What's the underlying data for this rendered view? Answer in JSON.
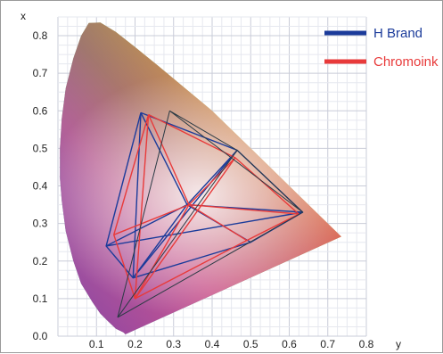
{
  "chart_data": {
    "type": "line",
    "title": "",
    "xlabel": "y",
    "ylabel": "x",
    "xlim": [
      0,
      0.8
    ],
    "ylim": [
      0,
      0.85
    ],
    "x_ticks": [
      "0.1",
      "0.2",
      "0.3",
      "0.4",
      "0.5",
      "0.6",
      "0.7",
      "0.8"
    ],
    "y_ticks": [
      "0.0",
      "0.1",
      "0.2",
      "0.3",
      "0.4",
      "0.5",
      "0.6",
      "0.7",
      "0.8"
    ],
    "grid": true,
    "legend_position": "top-right",
    "spectral_locus": [
      [
        0.175,
        0.005
      ],
      [
        0.17,
        0.01
      ],
      [
        0.15,
        0.02
      ],
      [
        0.13,
        0.04
      ],
      [
        0.11,
        0.06
      ],
      [
        0.09,
        0.09
      ],
      [
        0.06,
        0.14
      ],
      [
        0.04,
        0.2
      ],
      [
        0.02,
        0.28
      ],
      [
        0.01,
        0.36
      ],
      [
        0.005,
        0.42
      ],
      [
        0.005,
        0.5
      ],
      [
        0.01,
        0.58
      ],
      [
        0.02,
        0.66
      ],
      [
        0.04,
        0.74
      ],
      [
        0.06,
        0.8
      ],
      [
        0.08,
        0.834
      ],
      [
        0.11,
        0.835
      ],
      [
        0.15,
        0.81
      ],
      [
        0.2,
        0.77
      ],
      [
        0.26,
        0.72
      ],
      [
        0.33,
        0.66
      ],
      [
        0.4,
        0.6
      ],
      [
        0.47,
        0.53
      ],
      [
        0.54,
        0.46
      ],
      [
        0.61,
        0.39
      ],
      [
        0.68,
        0.32
      ],
      [
        0.735,
        0.265
      ]
    ],
    "series": [
      {
        "name": "H Brand",
        "color": "#1b3b9a",
        "polygons": [
          [
            [
              0.215,
              0.595
            ],
            [
              0.465,
              0.495
            ],
            [
              0.635,
              0.33
            ],
            [
              0.5,
              0.25
            ],
            [
              0.195,
              0.155
            ],
            [
              0.125,
              0.24
            ],
            [
              0.215,
              0.595
            ]
          ],
          [
            [
              0.215,
              0.595
            ],
            [
              0.335,
              0.35
            ],
            [
              0.125,
              0.24
            ]
          ],
          [
            [
              0.465,
              0.495
            ],
            [
              0.335,
              0.35
            ],
            [
              0.635,
              0.33
            ]
          ],
          [
            [
              0.5,
              0.25
            ],
            [
              0.335,
              0.35
            ],
            [
              0.195,
              0.155
            ]
          ],
          [
            [
              0.215,
              0.595
            ],
            [
              0.195,
              0.155
            ]
          ],
          [
            [
              0.465,
              0.495
            ],
            [
              0.195,
              0.155
            ]
          ],
          [
            [
              0.635,
              0.33
            ],
            [
              0.125,
              0.24
            ]
          ]
        ]
      },
      {
        "name": "Chromoink",
        "color": "#e83a3a",
        "polygons": [
          [
            [
              0.235,
              0.59
            ],
            [
              0.46,
              0.475
            ],
            [
              0.625,
              0.325
            ],
            [
              0.49,
              0.255
            ],
            [
              0.2,
              0.1
            ],
            [
              0.145,
              0.27
            ],
            [
              0.235,
              0.59
            ]
          ],
          [
            [
              0.235,
              0.59
            ],
            [
              0.34,
              0.35
            ],
            [
              0.145,
              0.27
            ]
          ],
          [
            [
              0.46,
              0.475
            ],
            [
              0.34,
              0.35
            ],
            [
              0.625,
              0.325
            ]
          ],
          [
            [
              0.49,
              0.255
            ],
            [
              0.34,
              0.35
            ],
            [
              0.2,
              0.1
            ]
          ],
          [
            [
              0.235,
              0.59
            ],
            [
              0.2,
              0.1
            ]
          ],
          [
            [
              0.46,
              0.475
            ],
            [
              0.2,
              0.1
            ]
          ]
        ]
      },
      {
        "name": "",
        "color": "#2a3a44",
        "polygons": [
          [
            [
              0.29,
              0.6
            ],
            [
              0.465,
              0.495
            ],
            [
              0.635,
              0.33
            ],
            [
              0.29,
              0.6
            ]
          ],
          [
            [
              0.29,
              0.6
            ],
            [
              0.155,
              0.05
            ]
          ],
          [
            [
              0.465,
              0.495
            ],
            [
              0.155,
              0.05
            ]
          ],
          [
            [
              0.635,
              0.33
            ],
            [
              0.155,
              0.05
            ]
          ]
        ]
      }
    ]
  }
}
